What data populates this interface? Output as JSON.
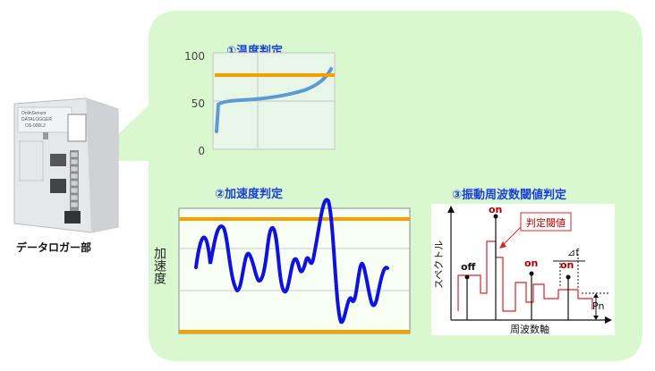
{
  "device": {
    "caption": "データロガー部",
    "brand_line1": "OnlinSensor",
    "brand_line2": "DATALOGGER",
    "model": "OS-000L2"
  },
  "temperature": {
    "title": "①温度判定",
    "ticks": [
      "100",
      "50",
      "0"
    ],
    "threshold": 80
  },
  "acceleration": {
    "title": "②加速度判定",
    "ylabel": "加速度"
  },
  "vibration": {
    "title": "③振動周波数閾値判定",
    "ylabel": "スペクトル",
    "xlabel": "周波数軸",
    "callout": "判定閾値",
    "labels": {
      "off": "off",
      "on1": "on",
      "on2": "on",
      "on3": "on",
      "delta_f": "⊿f",
      "pn": "Pn"
    }
  },
  "colors": {
    "panel": "#d9f8d0",
    "threshold": "#f5a000",
    "accel_wave": "#1010e0",
    "temp_curve": "#5a9bd5",
    "spectrum": "#e02020"
  }
}
